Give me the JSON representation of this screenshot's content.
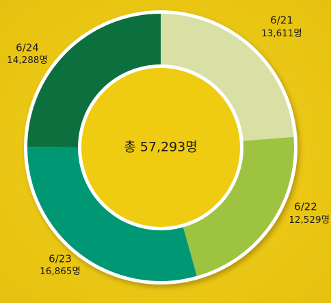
{
  "chart_data": {
    "type": "donut",
    "categories": [
      "6/21",
      "6/22",
      "6/23",
      "6/24"
    ],
    "values": [
      13611,
      12529,
      16865,
      14288
    ],
    "value_labels": [
      "13,611명",
      "12,529명",
      "16,865명",
      "14,288명"
    ],
    "colors": [
      "#d9e0a6",
      "#9dc340",
      "#009775",
      "#0b6f3e"
    ],
    "center_label": "총 57,293명"
  }
}
